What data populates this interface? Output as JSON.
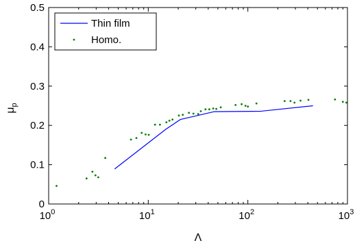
{
  "chart_data": {
    "type": "line",
    "title": "",
    "xlabel": "Λ",
    "ylabel_main": "μ",
    "ylabel_sub": "p",
    "xscale": "log",
    "xlim": [
      1,
      1000
    ],
    "ylim": [
      0,
      0.5
    ],
    "xticks": [
      {
        "value": 1,
        "base": "10",
        "exp": "0"
      },
      {
        "value": 10,
        "base": "10",
        "exp": "1"
      },
      {
        "value": 100,
        "base": "10",
        "exp": "2"
      },
      {
        "value": 1000,
        "base": "10",
        "exp": "3"
      }
    ],
    "yticks": [
      {
        "value": 0,
        "label": "0"
      },
      {
        "value": 0.1,
        "label": "0.1"
      },
      {
        "value": 0.2,
        "label": "0.2"
      },
      {
        "value": 0.3,
        "label": "0.3"
      },
      {
        "value": 0.4,
        "label": "0.4"
      },
      {
        "value": 0.5,
        "label": "0.5"
      }
    ],
    "grid": false,
    "legend_position": "top-left",
    "series": [
      {
        "name": "Thin film",
        "style": "line",
        "color": "#0000ff",
        "x": [
          4.6,
          15,
          21,
          46,
          135,
          450
        ],
        "y": [
          0.089,
          0.19,
          0.215,
          0.235,
          0.236,
          0.25
        ]
      },
      {
        "name": "Homo.",
        "style": "dots",
        "color": "#007f00",
        "x": [
          1.2,
          2.4,
          2.75,
          2.95,
          3.15,
          3.7,
          6.7,
          7.6,
          8.6,
          9.4,
          10.1,
          11.7,
          13.1,
          15.2,
          16.3,
          17.5,
          20.3,
          22.2,
          25.6,
          28.4,
          31.7,
          33.7,
          37.5,
          41,
          44.9,
          48.2,
          53.4,
          75.2,
          86.6,
          94.7,
          100,
          122,
          234,
          268,
          294,
          338,
          405,
          750,
          900,
          975
        ],
        "y": [
          0.046,
          0.065,
          0.082,
          0.073,
          0.068,
          0.117,
          0.164,
          0.168,
          0.181,
          0.177,
          0.176,
          0.202,
          0.202,
          0.208,
          0.212,
          0.215,
          0.225,
          0.227,
          0.232,
          0.23,
          0.229,
          0.236,
          0.241,
          0.241,
          0.243,
          0.242,
          0.246,
          0.252,
          0.254,
          0.25,
          0.248,
          0.256,
          0.262,
          0.262,
          0.258,
          0.263,
          0.265,
          0.266,
          0.26,
          0.258
        ]
      }
    ]
  }
}
